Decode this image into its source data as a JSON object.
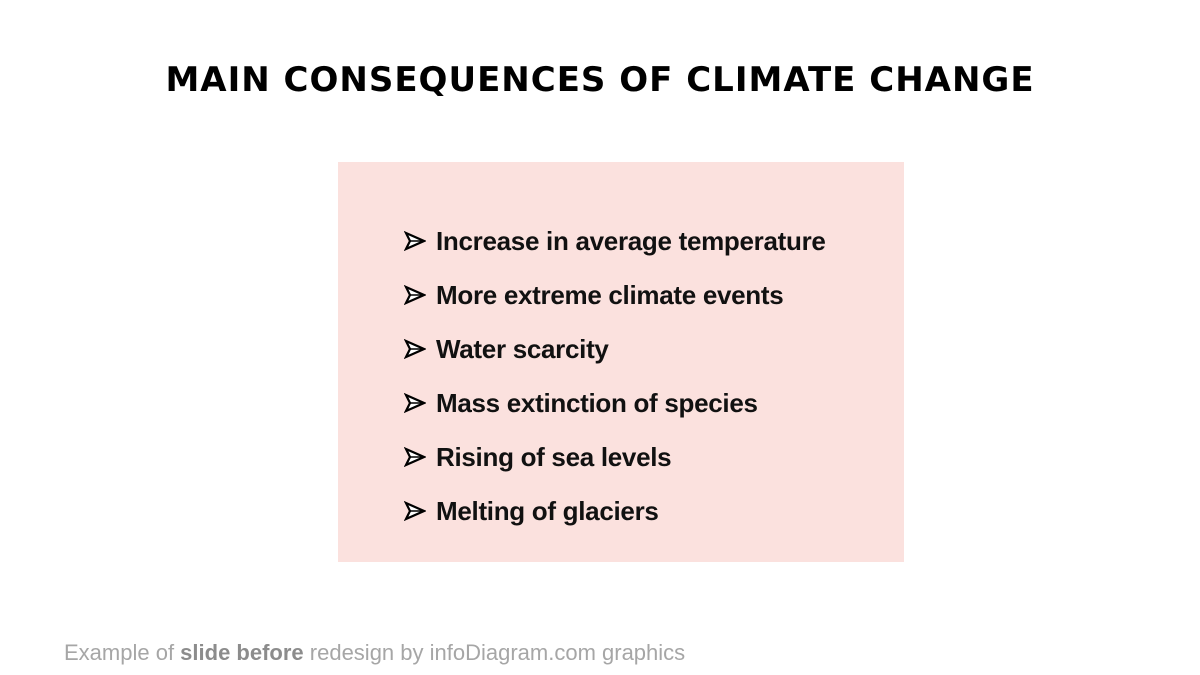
{
  "slide": {
    "title": "MAIN CONSEQUENCES OF CLIMATE CHANGE",
    "box_color": "#fbe1de",
    "bullets": [
      {
        "text": "Increase in average temperature",
        "icon": "arrowhead-bullet-icon"
      },
      {
        "text": "More extreme climate events",
        "icon": "arrowhead-bullet-icon"
      },
      {
        "text": "Water scarcity",
        "icon": "arrowhead-bullet-icon"
      },
      {
        "text": "Mass extinction of species",
        "icon": "arrowhead-bullet-icon"
      },
      {
        "text": "Rising of sea levels",
        "icon": "arrowhead-bullet-icon"
      },
      {
        "text": "Melting of glaciers",
        "icon": "arrowhead-bullet-icon"
      }
    ]
  },
  "footer": {
    "part1": "Example of ",
    "bold": "slide before",
    "part2": " redesign by infoDiagram.com graphics"
  }
}
